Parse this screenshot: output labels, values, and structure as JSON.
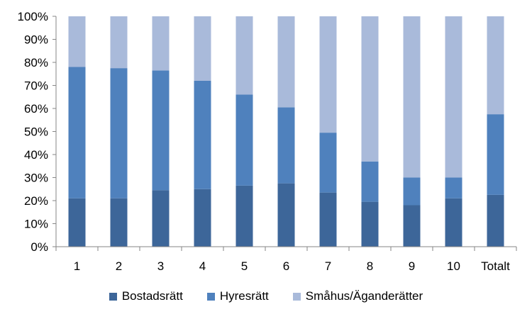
{
  "chart_data": {
    "type": "bar",
    "stacked": true,
    "percent_stacked": true,
    "title": "",
    "xlabel": "",
    "ylabel": "",
    "ylim": [
      0,
      100
    ],
    "y_ticks": [
      "0%",
      "10%",
      "20%",
      "30%",
      "40%",
      "50%",
      "60%",
      "70%",
      "80%",
      "90%",
      "100%"
    ],
    "grid": false,
    "legend_position": "bottom",
    "categories": [
      "1",
      "2",
      "3",
      "4",
      "5",
      "6",
      "7",
      "8",
      "9",
      "10",
      "Totalt"
    ],
    "series": [
      {
        "name": "Bostadsrätt",
        "color": "#3d6699",
        "values": [
          21,
          21,
          24.5,
          25,
          26.5,
          27.5,
          23.5,
          19.5,
          18,
          21,
          22.5
        ]
      },
      {
        "name": "Hyresrätt",
        "color": "#4f81bd",
        "values": [
          57,
          56.5,
          52,
          47,
          39.5,
          33,
          26,
          17.5,
          12,
          9,
          35
        ]
      },
      {
        "name": "Småhus/Äganderätter",
        "color": "#a9bada",
        "values": [
          22,
          22.5,
          23.5,
          28,
          34,
          39.5,
          50.5,
          63,
          70,
          70,
          42.5
        ]
      }
    ]
  }
}
